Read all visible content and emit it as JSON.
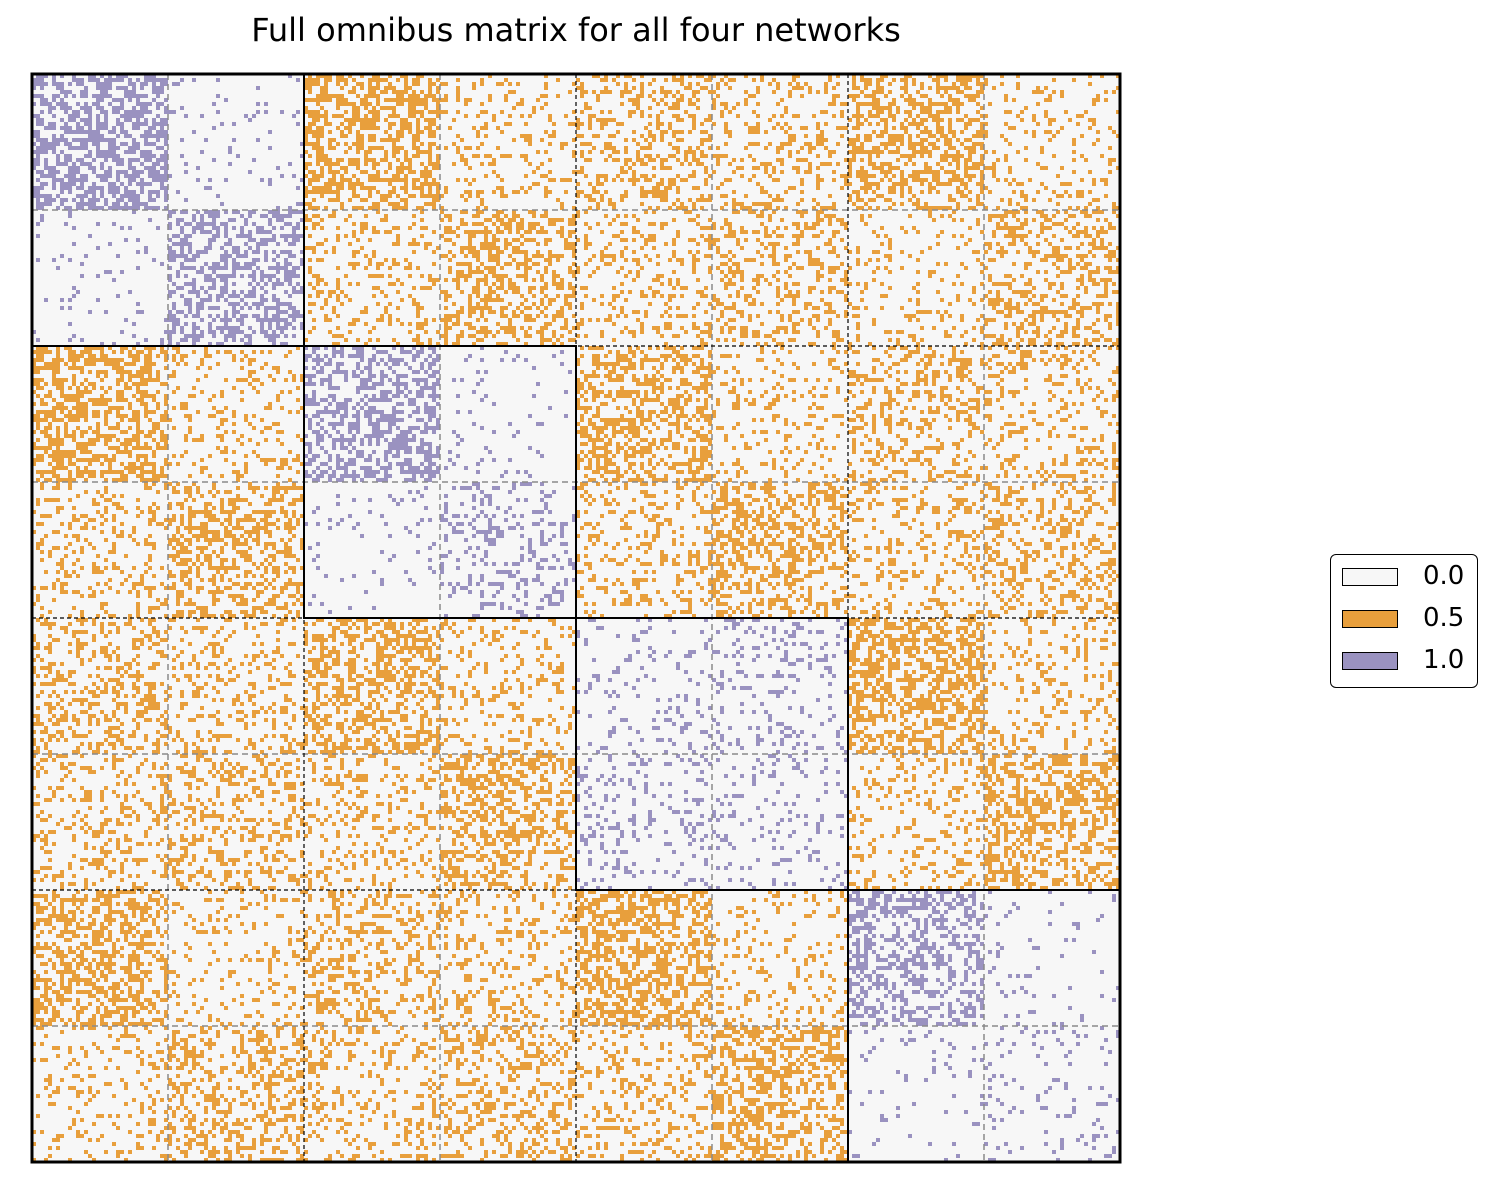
{
  "chart_data": {
    "type": "heatmap",
    "title": "Full omnibus matrix for all four networks",
    "networks": 4,
    "communities_per_network": 2,
    "colors": {
      "0.0": "#f7f7f7",
      "0.5": "#e89f3c",
      "1.0": "#9a92c0"
    },
    "legend": {
      "position": "right",
      "entries": [
        {
          "label": "0.0",
          "color": "#f7f7f7"
        },
        {
          "label": "0.5",
          "color": "#e89f3c"
        },
        {
          "label": "1.0",
          "color": "#9a92c0"
        }
      ]
    },
    "within_network_density": [
      [
        [
          0.55,
          0.08
        ],
        [
          0.08,
          0.45
        ]
      ],
      [
        [
          0.45,
          0.06
        ],
        [
          0.06,
          0.22
        ]
      ],
      [
        [
          0.1,
          0.16
        ],
        [
          0.16,
          0.1
        ]
      ],
      [
        [
          0.45,
          0.06
        ],
        [
          0.06,
          0.1
        ]
      ]
    ],
    "between_network_density": [
      [
        [
          0.5,
          0.16
        ],
        [
          0.2,
          0.44
        ]
      ],
      [
        [
          0.33,
          0.22
        ],
        [
          0.22,
          0.28
        ]
      ],
      [
        [
          0.47,
          0.14
        ],
        [
          0.14,
          0.34
        ]
      ]
    ],
    "grid": {
      "network_boundaries": "solid",
      "community_boundaries": "dashed"
    }
  }
}
